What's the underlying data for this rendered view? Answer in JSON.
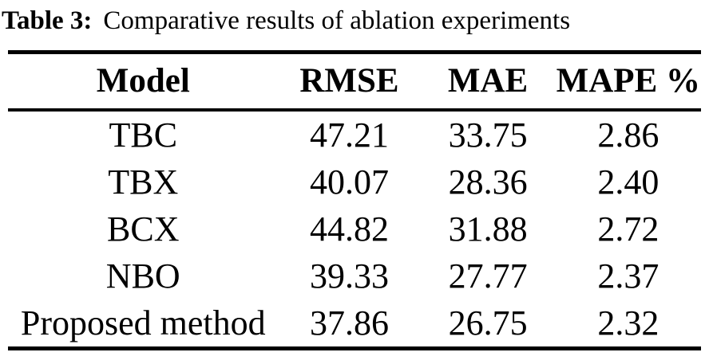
{
  "caption": {
    "label": "Table 3:",
    "text": "Comparative results of ablation experiments"
  },
  "table": {
    "columns": [
      "Model",
      "RMSE",
      "MAE",
      "MAPE %"
    ],
    "rows": [
      [
        "TBC",
        "47.21",
        "33.75",
        "2.86"
      ],
      [
        "TBX",
        "40.07",
        "28.36",
        "2.40"
      ],
      [
        "BCX",
        "44.82",
        "31.88",
        "2.72"
      ],
      [
        "NBO",
        "39.33",
        "27.77",
        "2.37"
      ],
      [
        "Proposed method",
        "37.86",
        "26.75",
        "2.32"
      ]
    ]
  },
  "colors": {
    "text": "#000000",
    "background": "#ffffff",
    "rule": "#000000"
  }
}
